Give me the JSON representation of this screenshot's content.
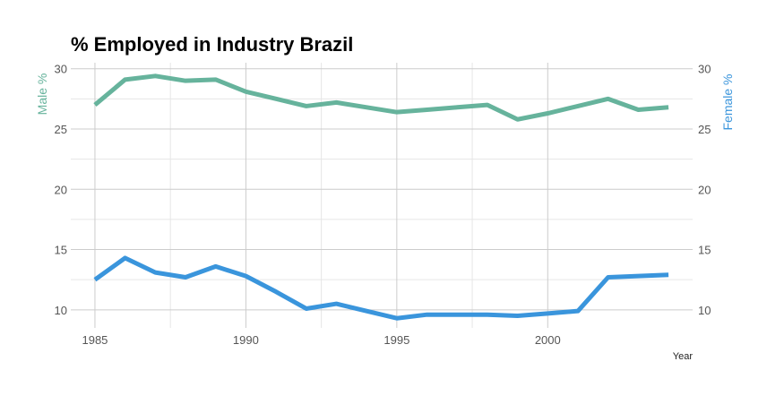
{
  "chart_data": {
    "type": "line",
    "title": "% Employed in Industry Brazil",
    "xlabel": "Year",
    "ylabel_left": "Male %",
    "ylabel_right": "Female %",
    "xlim": [
      1984.2,
      2004.8
    ],
    "ylim": [
      8.5,
      30.5
    ],
    "x_ticks": [
      1985,
      1990,
      1995,
      2000
    ],
    "y_ticks": [
      10,
      15,
      20,
      25,
      30
    ],
    "grid": true,
    "x": [
      1985,
      1986,
      1987,
      1988,
      1989,
      1990,
      1991,
      1992,
      1993,
      1994,
      1995,
      1996,
      1997,
      1998,
      1999,
      2000,
      2001,
      2002,
      2003,
      2004
    ],
    "series": [
      {
        "axis": "left",
        "color": "#66b39c",
        "values": [
          27.0,
          29.1,
          29.4,
          29.0,
          29.1,
          28.1,
          27.5,
          26.9,
          27.2,
          26.8,
          26.4,
          26.6,
          26.8,
          27.0,
          25.8,
          26.3,
          26.9,
          27.5,
          26.6,
          26.8
        ]
      },
      {
        "axis": "right",
        "color": "#3a95dc",
        "values": [
          12.5,
          14.3,
          13.1,
          12.7,
          13.6,
          12.8,
          11.5,
          10.1,
          10.5,
          9.9,
          9.3,
          9.6,
          9.6,
          9.6,
          9.5,
          9.7,
          9.9,
          12.7,
          12.8,
          12.9
        ]
      }
    ]
  }
}
